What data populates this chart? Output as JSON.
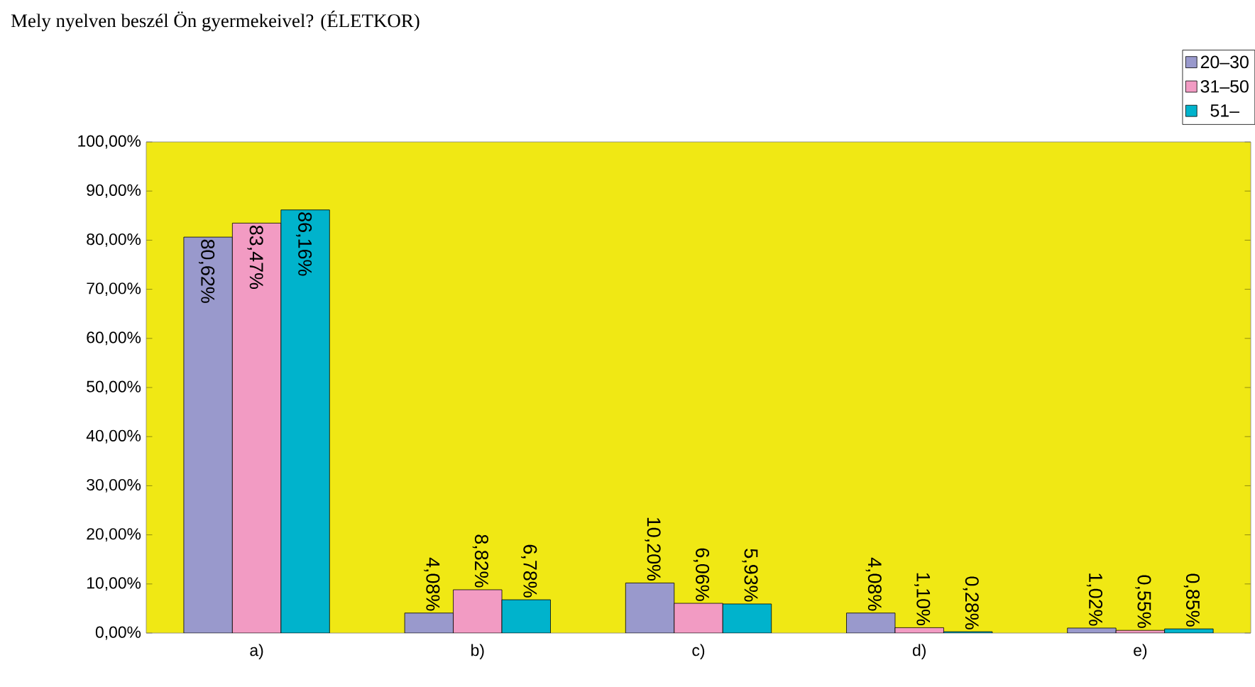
{
  "chart_data": {
    "type": "bar",
    "title": "Mely nyelven beszél Ön gyermekeivel? (ÉLETKOR)",
    "categories": [
      "a)",
      "b)",
      "c)",
      "d)",
      "e)"
    ],
    "series": [
      {
        "name": "20–30",
        "color": "#9999cc",
        "values": [
          80.62,
          4.08,
          10.2,
          4.08,
          1.02
        ],
        "value_labels": [
          "80,62%",
          "4,08%",
          "10,20%",
          "4,08%",
          "1,02%"
        ]
      },
      {
        "name": "31–50",
        "color": "#f29bc3",
        "values": [
          83.47,
          8.82,
          6.06,
          1.1,
          0.55
        ],
        "value_labels": [
          "83,47%",
          "8,82%",
          "6,06%",
          "1,10%",
          "0,55%"
        ]
      },
      {
        "name": "51–",
        "color": "#00b3cc",
        "values": [
          86.16,
          6.78,
          5.93,
          0.28,
          0.85
        ],
        "value_labels": [
          "86,16%",
          "6,78%",
          "5,93%",
          "0,28%",
          "0,85%"
        ]
      }
    ],
    "ylim": [
      0,
      100
    ],
    "yticks": [
      {
        "value": 0,
        "label": "0,00%"
      },
      {
        "value": 10,
        "label": "10,00%"
      },
      {
        "value": 20,
        "label": "20,00%"
      },
      {
        "value": 30,
        "label": "30,00%"
      },
      {
        "value": 40,
        "label": "40,00%"
      },
      {
        "value": 50,
        "label": "50,00%"
      },
      {
        "value": 60,
        "label": "60,00%"
      },
      {
        "value": 70,
        "label": "70,00%"
      },
      {
        "value": 80,
        "label": "80,00%"
      },
      {
        "value": 90,
        "label": "90,00%"
      },
      {
        "value": 100,
        "label": "100,00%"
      }
    ],
    "grid": false,
    "legend": "top right"
  }
}
